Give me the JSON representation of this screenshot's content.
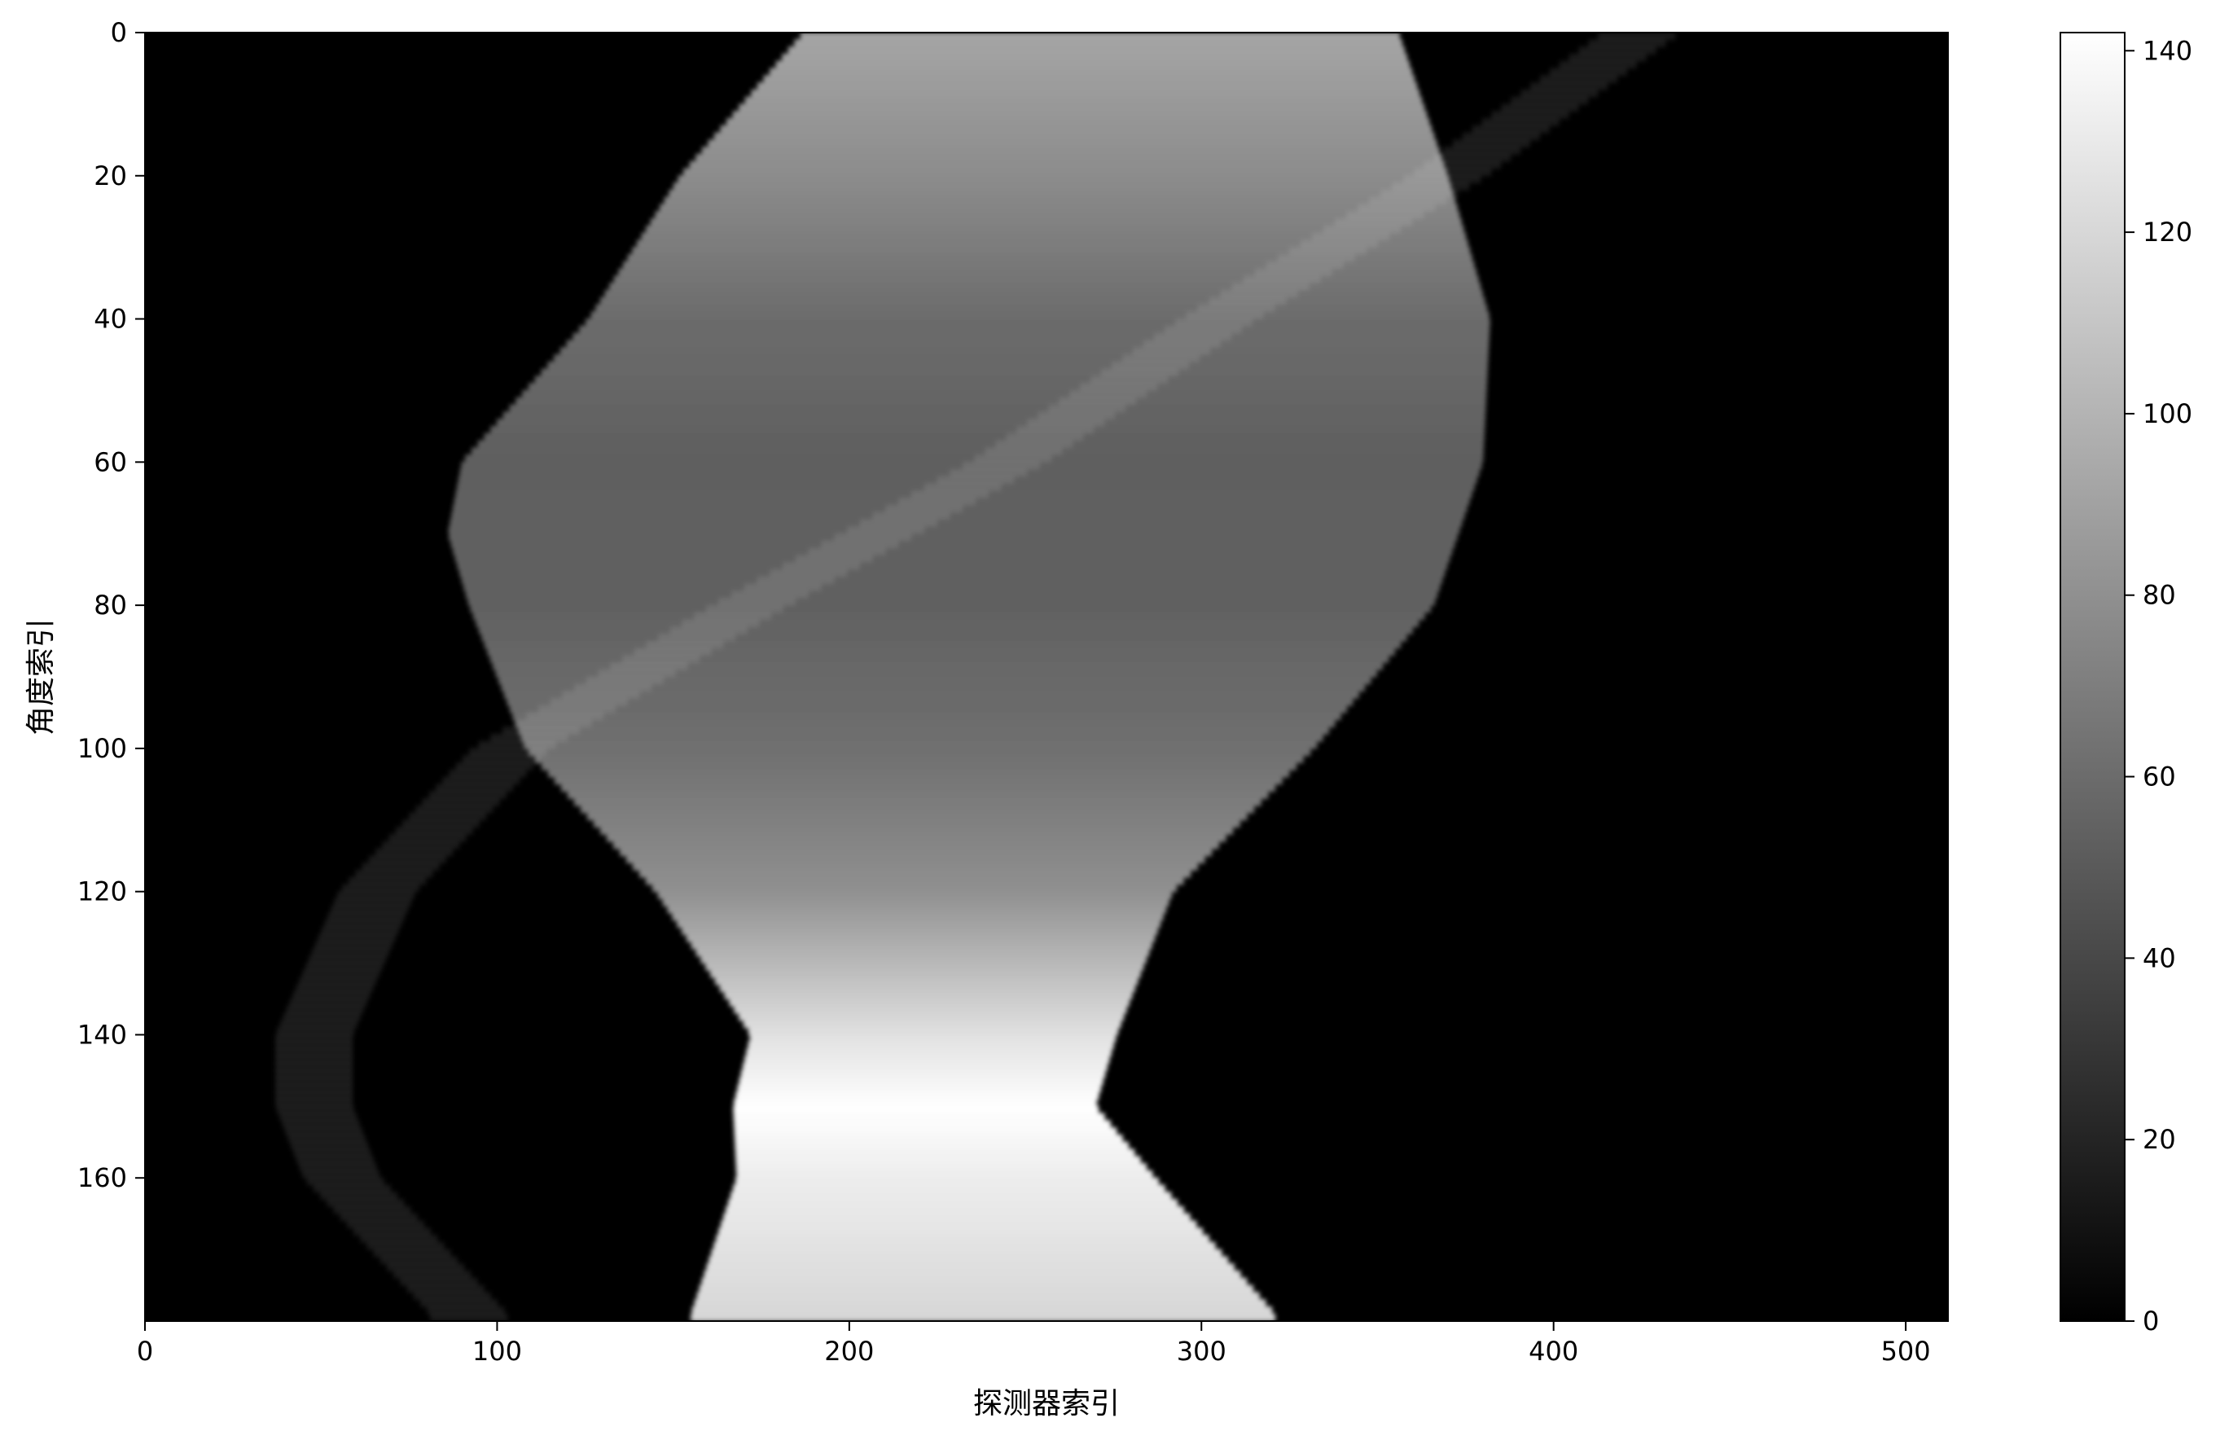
{
  "chart_data": {
    "type": "heatmap",
    "title": "",
    "xlabel": "探测器索引",
    "ylabel": "角度索引",
    "x_range": [
      0,
      512
    ],
    "y_range": [
      0,
      180
    ],
    "y_inverted": true,
    "x_ticks": [
      0,
      100,
      200,
      300,
      400,
      500
    ],
    "y_ticks": [
      0,
      20,
      40,
      60,
      80,
      100,
      120,
      140,
      160
    ],
    "colorbar": {
      "colormap": "gray",
      "range": [
        0,
        142
      ],
      "ticks": [
        0,
        20,
        40,
        60,
        80,
        100,
        120,
        140
      ]
    },
    "colors": {
      "low": "#000000",
      "high": "#ffffff"
    },
    "grid": false,
    "legend": "none",
    "features": {
      "main_band": {
        "description": "wide bright sinogram band",
        "left_edge": [
          [
            0,
            187
          ],
          [
            20,
            152
          ],
          [
            40,
            126
          ],
          [
            60,
            90
          ],
          [
            70,
            86
          ],
          [
            80,
            92
          ],
          [
            100,
            108
          ],
          [
            120,
            145
          ],
          [
            140,
            172
          ],
          [
            150,
            167
          ],
          [
            160,
            168
          ],
          [
            179,
            155
          ]
        ],
        "right_edge": [
          [
            0,
            356
          ],
          [
            20,
            370
          ],
          [
            40,
            382
          ],
          [
            60,
            380
          ],
          [
            80,
            366
          ],
          [
            100,
            332
          ],
          [
            120,
            292
          ],
          [
            140,
            276
          ],
          [
            150,
            270
          ],
          [
            160,
            287
          ],
          [
            179,
            321
          ]
        ],
        "intensity": [
          [
            0,
            92
          ],
          [
            20,
            78
          ],
          [
            40,
            60
          ],
          [
            60,
            53
          ],
          [
            80,
            54
          ],
          [
            100,
            62
          ],
          [
            120,
            80
          ],
          [
            140,
            125
          ],
          [
            150,
            142
          ],
          [
            160,
            132
          ],
          [
            179,
            120
          ]
        ]
      },
      "thin_stripe": {
        "description": "narrow sinusoidal stripe",
        "center": [
          [
            0,
            425
          ],
          [
            20,
            370
          ],
          [
            40,
            305
          ],
          [
            60,
            245
          ],
          [
            80,
            172
          ],
          [
            100,
            104
          ],
          [
            120,
            66
          ],
          [
            140,
            48
          ],
          [
            150,
            48
          ],
          [
            160,
            56
          ],
          [
            179,
            92
          ]
        ],
        "width": 22,
        "intensity": 14
      }
    }
  }
}
